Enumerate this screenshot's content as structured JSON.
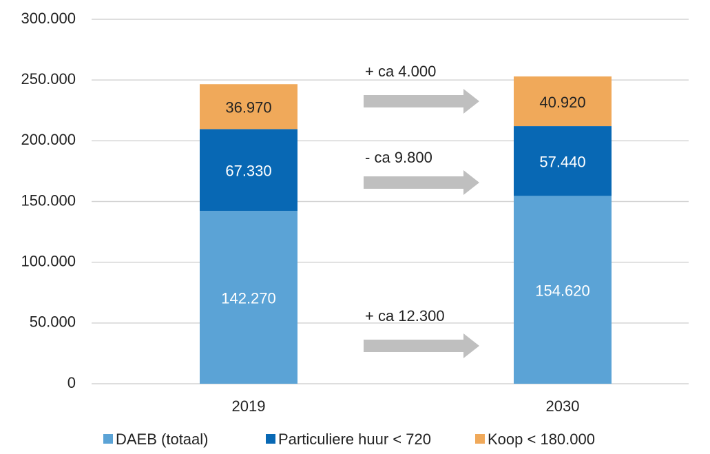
{
  "chart_data": {
    "type": "stacked_bar",
    "categories": [
      "2019",
      "2030"
    ],
    "series": [
      {
        "name": "DAEB (totaal)",
        "color": "#5ba3d6",
        "values": [
          142270,
          154620
        ],
        "value_labels": [
          "142.270",
          "154.620"
        ]
      },
      {
        "name": "Particuliere huur < 720",
        "color": "#0868b4",
        "values": [
          67330,
          57440
        ],
        "value_labels": [
          "67.330",
          "57.440"
        ]
      },
      {
        "name": "Koop < 180.000",
        "color": "#f0a95a",
        "values": [
          36970,
          40920
        ],
        "value_labels": [
          "36.970",
          "40.920"
        ]
      }
    ],
    "ylim": [
      0,
      300000
    ],
    "yticks": [
      0,
      {
        "value": 50000,
        "label": "50.000"
      },
      {
        "value": 100000,
        "label": "100.000"
      },
      {
        "value": 150000,
        "label": "150.000"
      },
      {
        "value": 200000,
        "label": "200.000"
      },
      {
        "value": 250000,
        "label": "250.000"
      },
      {
        "value": 300000,
        "label": "300.000"
      }
    ],
    "grid": true,
    "annotations": [
      "+ ca 4.000",
      "- ca 9.800",
      "+ ca 12.300"
    ],
    "legend": "bottom"
  }
}
